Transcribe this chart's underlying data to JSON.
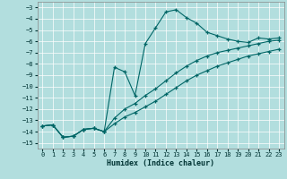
{
  "xlabel": "Humidex (Indice chaleur)",
  "background_color": "#b2dede",
  "grid_color": "#d0eeee",
  "line_color": "#006666",
  "xlim": [
    -0.5,
    23.5
  ],
  "ylim": [
    -15.5,
    -2.5
  ],
  "xticks": [
    0,
    1,
    2,
    3,
    4,
    5,
    6,
    7,
    8,
    9,
    10,
    11,
    12,
    13,
    14,
    15,
    16,
    17,
    18,
    19,
    20,
    21,
    22,
    23
  ],
  "yticks": [
    -15,
    -14,
    -13,
    -12,
    -11,
    -10,
    -9,
    -8,
    -7,
    -6,
    -5,
    -4,
    -3
  ],
  "series1_x": [
    0,
    1,
    2,
    3,
    4,
    5,
    6,
    7,
    8,
    9,
    10,
    11,
    12,
    13,
    14,
    15,
    16,
    17,
    18,
    19,
    20,
    21,
    22,
    23
  ],
  "series1_y": [
    -13.5,
    -13.4,
    -14.5,
    -14.4,
    -13.8,
    -13.7,
    -14.0,
    -8.3,
    -8.7,
    -10.8,
    -6.2,
    -4.8,
    -3.4,
    -3.2,
    -3.9,
    -4.4,
    -5.2,
    -5.5,
    -5.8,
    -6.0,
    -6.1,
    -5.7,
    -5.8,
    -5.7
  ],
  "series2_x": [
    0,
    1,
    2,
    3,
    4,
    5,
    6,
    7,
    8,
    9,
    10,
    11,
    12,
    13,
    14,
    15,
    16,
    17,
    18,
    19,
    20,
    21,
    22,
    23
  ],
  "series2_y": [
    -13.5,
    -13.4,
    -14.5,
    -14.4,
    -13.8,
    -13.7,
    -14.0,
    -12.8,
    -12.0,
    -11.5,
    -10.8,
    -10.2,
    -9.5,
    -8.8,
    -8.2,
    -7.7,
    -7.3,
    -7.0,
    -6.8,
    -6.6,
    -6.4,
    -6.2,
    -6.0,
    -5.9
  ],
  "series3_x": [
    0,
    1,
    2,
    3,
    4,
    5,
    6,
    7,
    8,
    9,
    10,
    11,
    12,
    13,
    14,
    15,
    16,
    17,
    18,
    19,
    20,
    21,
    22,
    23
  ],
  "series3_y": [
    -13.5,
    -13.4,
    -14.5,
    -14.4,
    -13.8,
    -13.7,
    -14.0,
    -13.3,
    -12.7,
    -12.3,
    -11.8,
    -11.3,
    -10.7,
    -10.1,
    -9.5,
    -9.0,
    -8.6,
    -8.2,
    -7.9,
    -7.6,
    -7.3,
    -7.1,
    -6.9,
    -6.7
  ]
}
